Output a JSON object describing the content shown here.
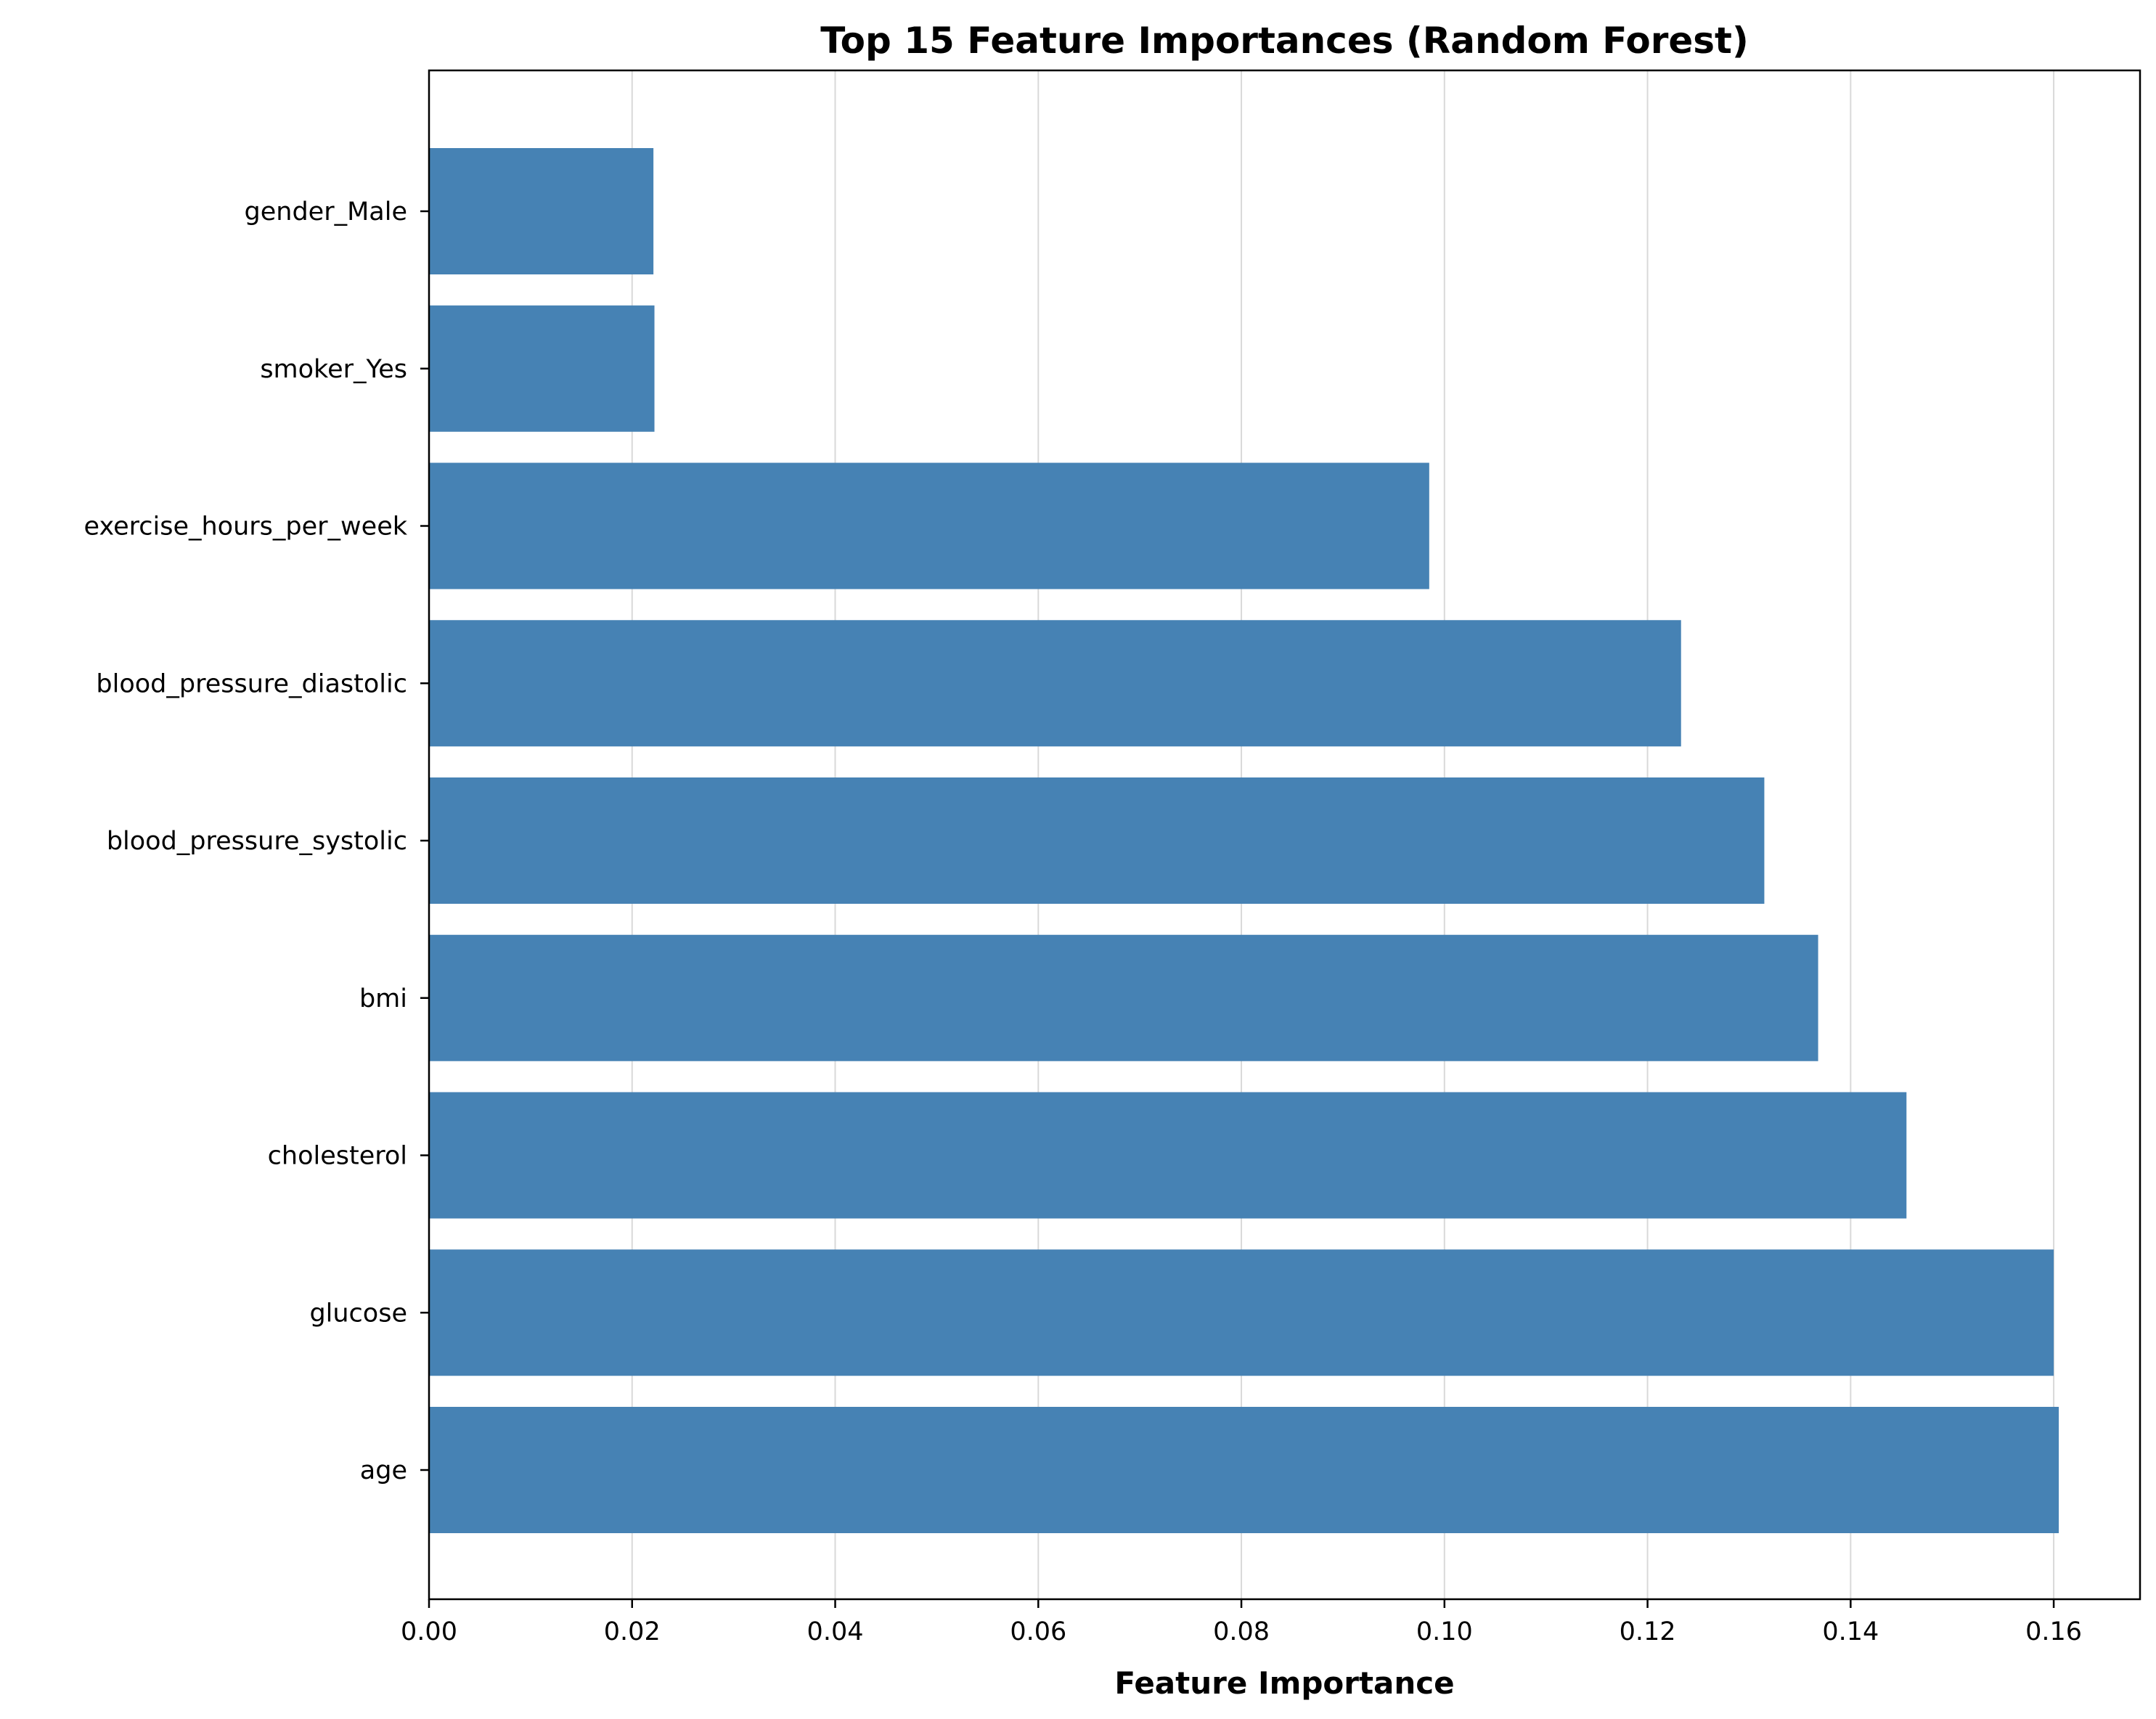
{
  "chart_data": {
    "type": "bar",
    "orientation": "horizontal",
    "title": "Top 15 Feature Importances (Random Forest)",
    "xlabel": "Feature Importance",
    "ylabel": "",
    "categories": [
      "age",
      "glucose",
      "cholesterol",
      "bmi",
      "blood_pressure_systolic",
      "blood_pressure_diastolic",
      "exercise_hours_per_week",
      "smoker_Yes",
      "gender_Male"
    ],
    "values": [
      0.1605,
      0.16,
      0.1455,
      0.1368,
      0.1315,
      0.1233,
      0.0985,
      0.0222,
      0.0221
    ],
    "xlim": [
      0,
      0.1685
    ],
    "xticks": [
      0.0,
      0.02,
      0.04,
      0.06,
      0.08,
      0.1,
      0.12,
      0.14,
      0.16
    ],
    "xtick_labels": [
      "0.00",
      "0.02",
      "0.04",
      "0.06",
      "0.08",
      "0.10",
      "0.12",
      "0.14",
      "0.16"
    ],
    "grid": "vertical",
    "bar_color": "#4682b4",
    "grid_color": "#d9d9d9"
  }
}
